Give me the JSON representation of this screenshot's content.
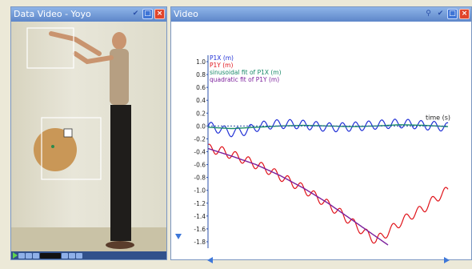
{
  "left_window": {
    "title": "Data Video - Yoyo",
    "title_icons": [
      "checkmark-icon",
      "restore-icon",
      "close-icon"
    ]
  },
  "right_window": {
    "title": "Video",
    "title_icons": [
      "zoom-icon",
      "checkmark-icon",
      "restore-icon",
      "close-icon"
    ]
  },
  "video_controls": [
    "play-icon",
    "stop-icon",
    "step-back-icon",
    "rewind-icon",
    "step-forward-icon",
    "fast-forward-icon",
    "options-icon"
  ],
  "colors": {
    "title_bar": "#6f97d8",
    "p1x": "#2231d6",
    "p1y": "#e0141b",
    "sin_fit": "#1a8a6a",
    "quad_fit": "#7b1f9c",
    "close_button": "#e0442a"
  },
  "chart_data": {
    "type": "line",
    "xlabel": "time (s)",
    "ylabel": "",
    "title": "",
    "y_ticks": [
      "1.0",
      "0.8",
      "0.6",
      "0.4",
      "0.2",
      "0.0",
      "-0.2",
      "-0.4",
      "-0.6",
      "-0.8",
      "-1.0",
      "-1.2",
      "-1.4",
      "-1.6",
      "-1.8"
    ],
    "ylim": [
      -1.9,
      1.1
    ],
    "xlim": [
      0,
      10
    ],
    "grid": false,
    "legend_position": "top-left",
    "series": [
      {
        "name": "P1X (m)",
        "color_key": "p1x",
        "x": [
          0,
          0.5,
          1,
          1.5,
          2,
          2.5,
          3,
          3.5,
          4,
          4.5,
          5,
          5.5,
          6,
          6.5,
          7,
          7.5,
          8,
          8.5,
          9,
          9.5,
          10
        ],
        "y": [
          0.0,
          -0.05,
          -0.1,
          -0.08,
          -0.02,
          0.02,
          0.03,
          0.03,
          0.02,
          0.0,
          -0.02,
          -0.02,
          -0.01,
          0.0,
          0.02,
          0.03,
          0.04,
          0.03,
          0.01,
          0.0,
          -0.02
        ],
        "oscillation": 0.07
      },
      {
        "name": "P1Y (m)",
        "color_key": "p1y",
        "x": [
          0,
          0.5,
          1,
          1.5,
          2,
          2.5,
          3,
          3.5,
          4,
          4.5,
          5,
          5.5,
          6,
          6.5,
          7,
          7.5,
          8,
          8.5,
          9,
          9.5,
          10
        ],
        "y": [
          -0.35,
          -0.38,
          -0.45,
          -0.52,
          -0.6,
          -0.68,
          -0.78,
          -0.88,
          -0.98,
          -1.1,
          -1.22,
          -1.35,
          -1.5,
          -1.65,
          -1.78,
          -1.65,
          -1.5,
          -1.38,
          -1.28,
          -1.12,
          -1.0
        ],
        "oscillation": 0.07
      },
      {
        "name": "sinusoidal fit of P1X (m)",
        "color_key": "sin_fit",
        "x": [
          0,
          1,
          2,
          3,
          4,
          5,
          6,
          7,
          8,
          9,
          10
        ],
        "y": [
          -0.02,
          -0.04,
          -0.02,
          0.0,
          0.01,
          0.0,
          -0.01,
          0.0,
          0.02,
          0.01,
          -0.01
        ],
        "oscillation": 0.0
      },
      {
        "name": "quadratic fit of P1Y (m)",
        "color_key": "quad_fit",
        "x": [
          0,
          1,
          2,
          3,
          4,
          5,
          6,
          7,
          7.5
        ],
        "y": [
          -0.35,
          -0.47,
          -0.6,
          -0.77,
          -0.97,
          -1.2,
          -1.46,
          -1.72,
          -1.85
        ],
        "oscillation": 0.0
      }
    ]
  }
}
